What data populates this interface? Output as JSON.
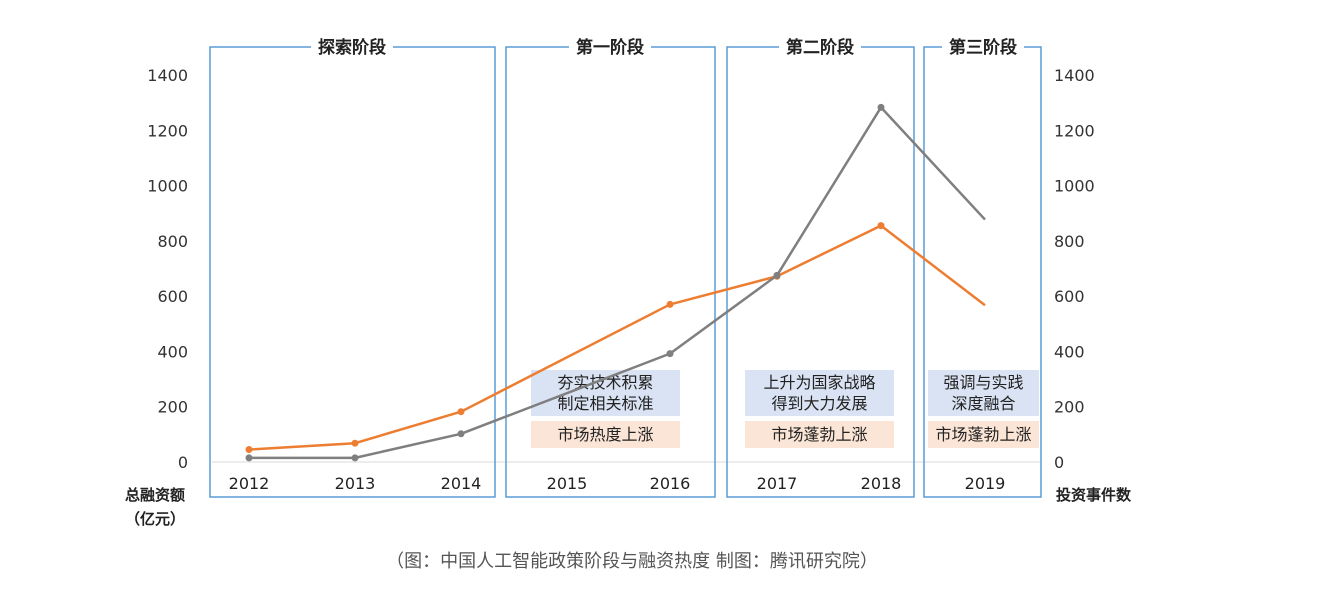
{
  "chart_data": {
    "type": "line",
    "categories": [
      "2012",
      "2013",
      "2014",
      "2015",
      "2016",
      "2017",
      "2018",
      "2019"
    ],
    "series": [
      {
        "name": "",
        "axis": "left",
        "color": "#ED7D31",
        "points": [
          [
            2012,
            45
          ],
          [
            2013,
            68
          ],
          [
            2014,
            182
          ],
          [
            2016,
            570
          ],
          [
            2017,
            672
          ],
          [
            2018,
            855
          ],
          [
            2019,
            567
          ]
        ]
      },
      {
        "name": "",
        "axis": "right",
        "color": "#7F7F7F",
        "points": [
          [
            2012,
            15
          ],
          [
            2013,
            15
          ],
          [
            2014,
            102
          ],
          [
            2016,
            392
          ],
          [
            2017,
            675
          ],
          [
            2018,
            1283
          ],
          [
            2019,
            877
          ]
        ]
      }
    ],
    "ylim_left": [
      0,
      1400
    ],
    "ylim_right": [
      0,
      1400
    ],
    "yticks": [
      0,
      200,
      400,
      600,
      800,
      1000,
      1200,
      1400
    ],
    "ylabel_left_lines": [
      "总融资额",
      "（亿元）"
    ],
    "ylabel_right": "投资事件数",
    "phases": [
      {
        "title": "探索阶段",
        "years": [
          "2012",
          "2013",
          "2014"
        ],
        "notes": []
      },
      {
        "title": "第一阶段",
        "years": [
          "2015",
          "2016"
        ],
        "notes": [
          {
            "lines": [
              "夯实技术积累",
              "制定相关标准"
            ],
            "color": "#DAE3F3"
          },
          {
            "lines": [
              "市场热度上涨"
            ],
            "color": "#FBE5D6"
          }
        ]
      },
      {
        "title": "第二阶段",
        "years": [
          "2017",
          "2018"
        ],
        "notes": [
          {
            "lines": [
              "上升为国家战略",
              "得到大力发展"
            ],
            "color": "#DAE3F3"
          },
          {
            "lines": [
              "市场蓬勃上涨"
            ],
            "color": "#FBE5D6"
          }
        ]
      },
      {
        "title": "第三阶段",
        "years": [
          "2019"
        ],
        "notes": [
          {
            "lines": [
              "强调与实践",
              "深度融合"
            ],
            "color": "#DAE3F3"
          },
          {
            "lines": [
              "市场蓬勃上涨"
            ],
            "color": "#FBE5D6"
          }
        ]
      }
    ],
    "caption": "（图：中国人工智能政策阶段与融资热度 制图：腾讯研究院）",
    "frame_color": "#5B9BD5",
    "baseline_color": "#D9D9D9"
  }
}
